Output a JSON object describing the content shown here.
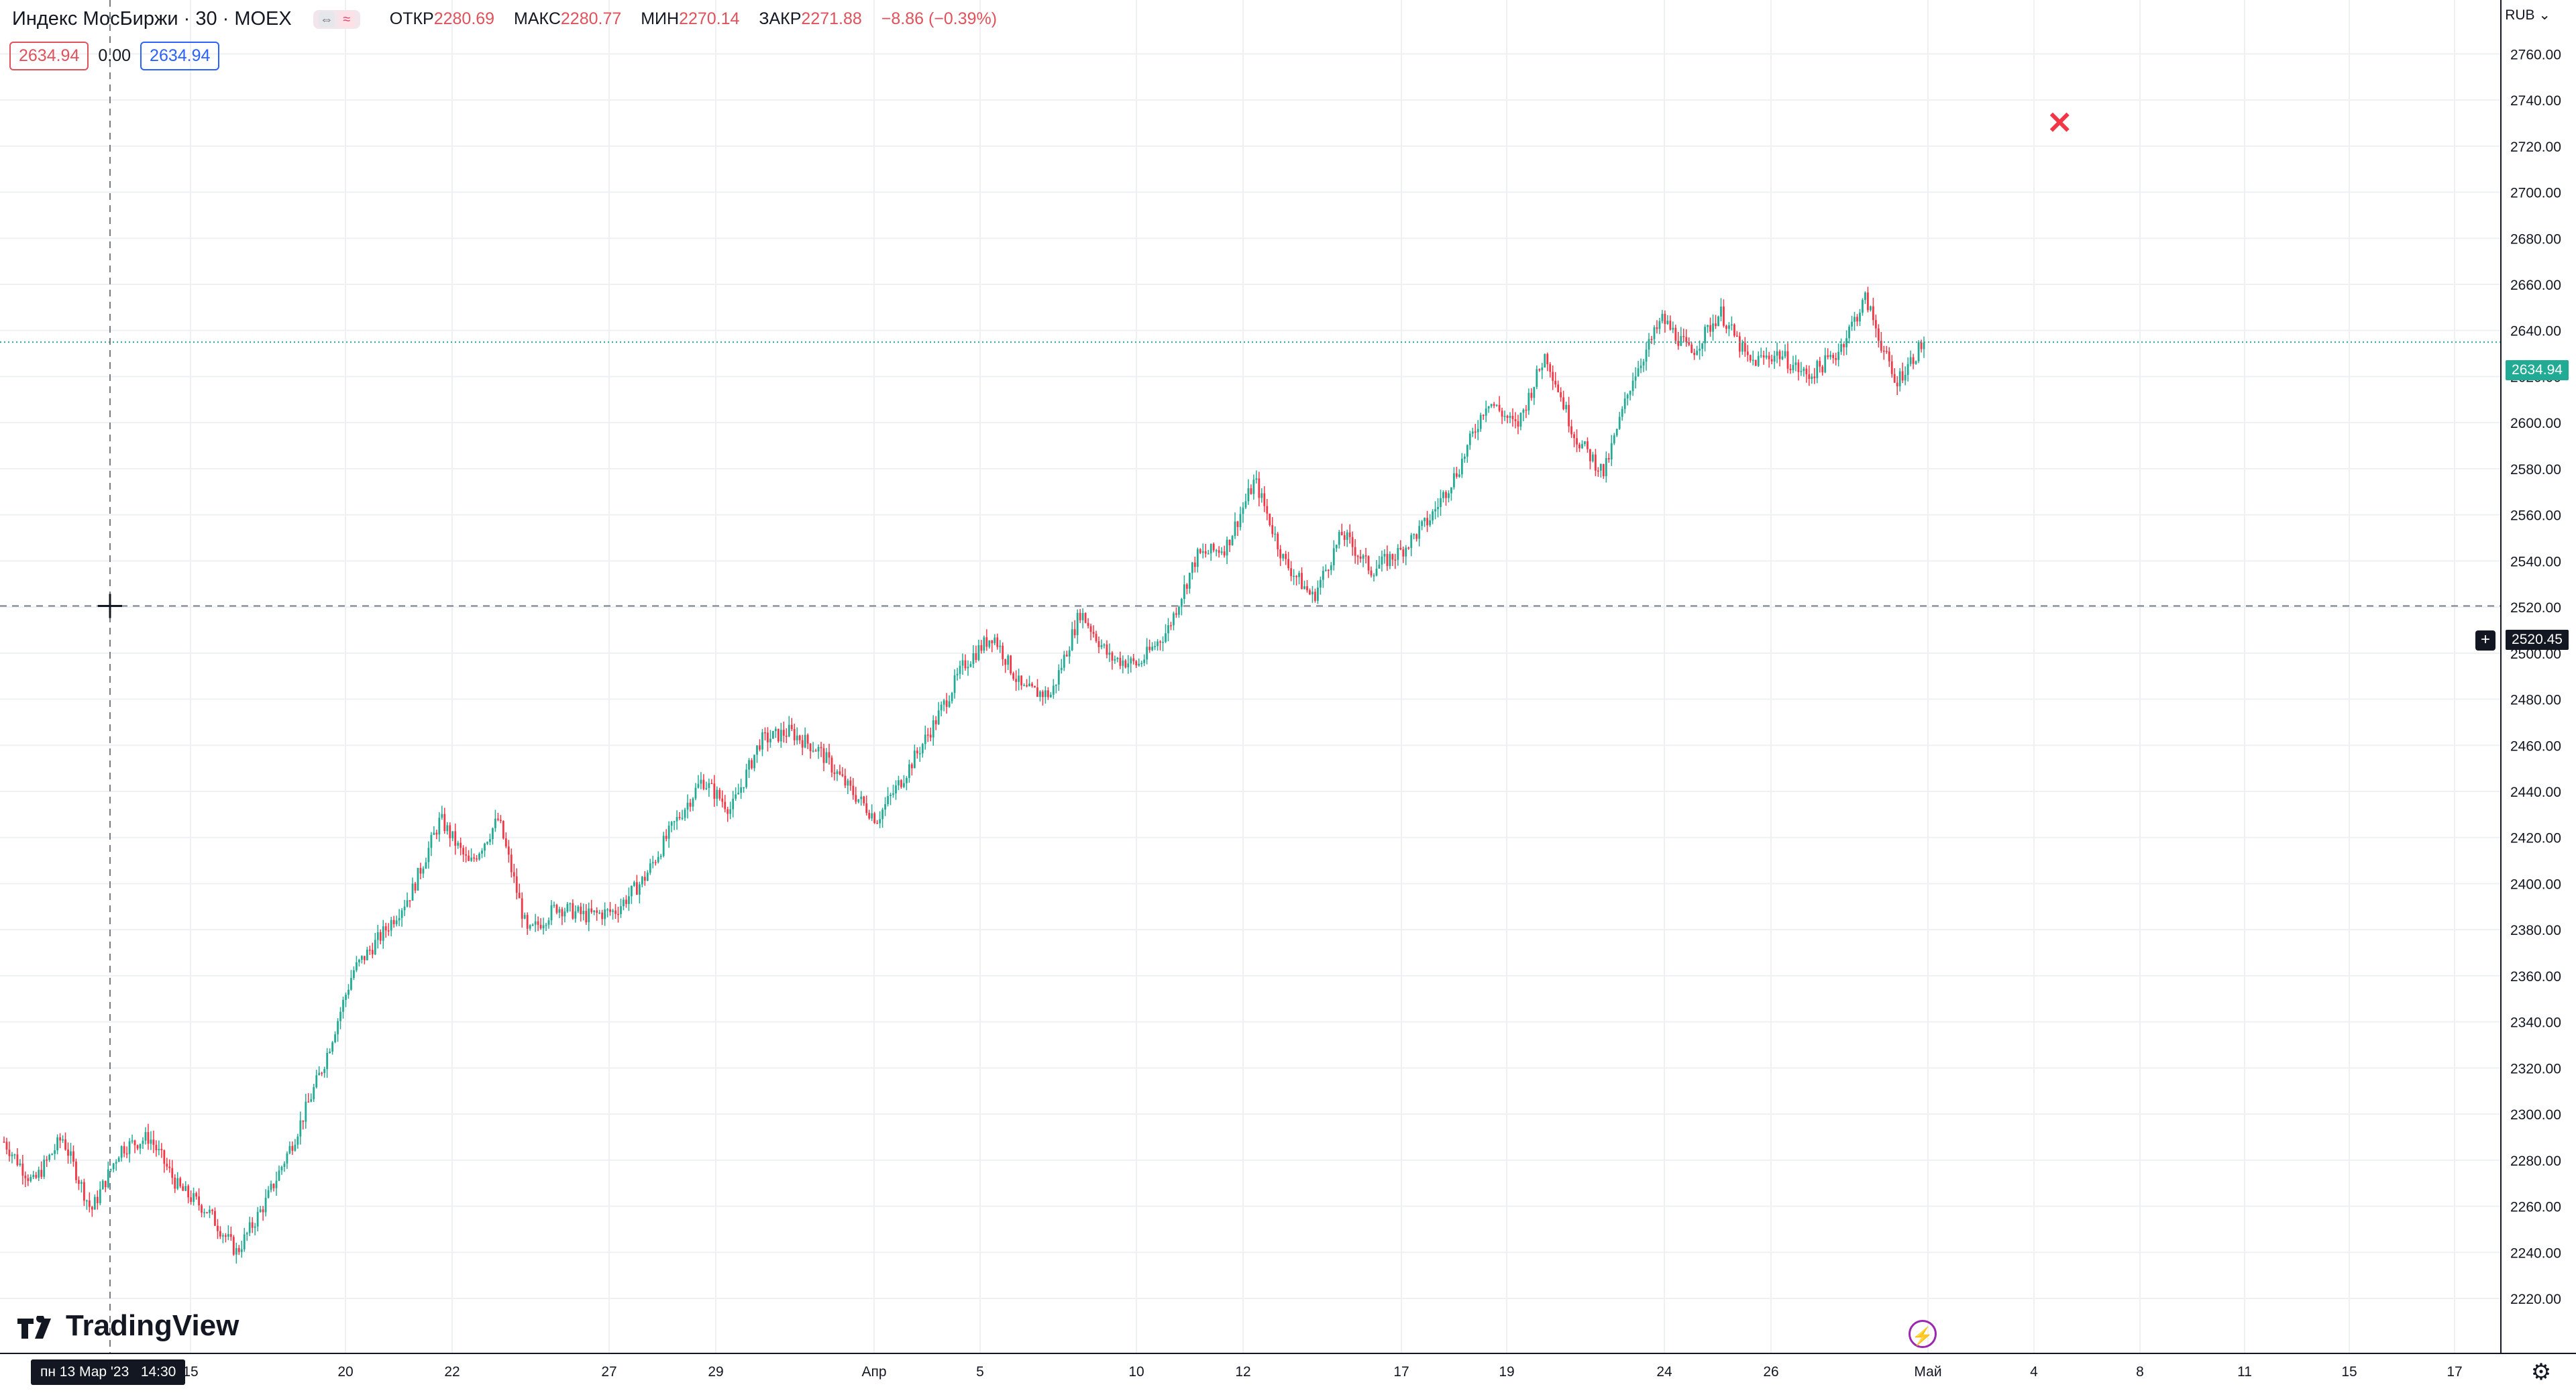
{
  "legend": {
    "symbol": "Индекс МосБиржи · 30 · MOEX",
    "open_label": "ОТКР",
    "open": "2280.69",
    "high_label": "МАКС",
    "high": "2280.77",
    "low_label": "МИН",
    "low": "2270.14",
    "close_label": "ЗАКР",
    "close": "2271.88",
    "change": "−8.86 (−0.39%)",
    "toggle_icon": "≈"
  },
  "order": {
    "sell": "2634.94",
    "spread": "0.00",
    "buy": "2634.94"
  },
  "currency": "RUB ⌄",
  "brand": "TradingView",
  "crosshair": {
    "date": "пн 13 Мар '23",
    "time": "14:30",
    "price": "2520.45"
  },
  "last_price": "2634.94",
  "colors": {
    "up": "#22ab94",
    "down": "#f23645",
    "grid": "#eef0f3"
  },
  "chart_data": {
    "type": "candlestick",
    "ylim": [
      2220,
      2770
    ],
    "y_ticks": [
      "2220.00",
      "2240.00",
      "2260.00",
      "2280.00",
      "2300.00",
      "2320.00",
      "2340.00",
      "2360.00",
      "2380.00",
      "2400.00",
      "2420.00",
      "2440.00",
      "2460.00",
      "2480.00",
      "2500.00",
      "2520.00",
      "2540.00",
      "2560.00",
      "2580.00",
      "2600.00",
      "2620.00",
      "2640.00",
      "2660.00",
      "2680.00",
      "2700.00",
      "2720.00",
      "2740.00",
      "2760.00"
    ],
    "x_ticks": [
      "15",
      "20",
      "22",
      "27",
      "29",
      "Апр",
      "5",
      "10",
      "12",
      "17",
      "19",
      "24",
      "26",
      "Май",
      "4",
      "8",
      "11",
      "15",
      "17"
    ],
    "path": [
      [
        "Mar 10",
        2288
      ],
      [
        "Mar 13",
        2270
      ],
      [
        "Mar 14",
        2290
      ],
      [
        "Mar 15",
        2258
      ],
      [
        "Mar 16",
        2285
      ],
      [
        "Mar 17",
        2290
      ],
      [
        "Mar 17",
        2268
      ],
      [
        "Mar 17",
        2258
      ],
      [
        "Mar 20",
        2240
      ],
      [
        "Mar 20",
        2262
      ],
      [
        "Mar 20",
        2290
      ],
      [
        "Mar 20",
        2322
      ],
      [
        "Mar 21",
        2362
      ],
      [
        "Mar 21",
        2378
      ],
      [
        "Mar 21",
        2396
      ],
      [
        "Mar 21",
        2428
      ],
      [
        "Mar 22",
        2408
      ],
      [
        "Mar 22",
        2428
      ],
      [
        "Mar 22",
        2378
      ],
      [
        "Mar 23",
        2390
      ],
      [
        "Mar 24",
        2386
      ],
      [
        "Mar 27",
        2388
      ],
      [
        "Mar 27",
        2402
      ],
      [
        "Mar 27",
        2425
      ],
      [
        "Mar 28",
        2445
      ],
      [
        "Mar 29",
        2432
      ],
      [
        "Mar 29",
        2462
      ],
      [
        "Mar 30",
        2466
      ],
      [
        "Mar 30",
        2458
      ],
      [
        "Mar 31",
        2442
      ],
      [
        "Mar 31",
        2428
      ],
      [
        "Mar 31",
        2448
      ],
      [
        "Apr 3",
        2470
      ],
      [
        "Apr 4",
        2495
      ],
      [
        "Apr 4",
        2508
      ],
      [
        "Apr 5",
        2484
      ],
      [
        "Apr 6",
        2482
      ],
      [
        "Apr 6",
        2518
      ],
      [
        "Apr 7",
        2498
      ],
      [
        "Apr 7",
        2495
      ],
      [
        "Apr 10",
        2510
      ],
      [
        "Apr 10",
        2542
      ],
      [
        "Apr 10",
        2546
      ],
      [
        "Apr 11",
        2575
      ],
      [
        "Apr 11",
        2540
      ],
      [
        "Apr 12",
        2524
      ],
      [
        "Apr 12",
        2552
      ],
      [
        "Apr 13",
        2536
      ],
      [
        "Apr 14",
        2544
      ],
      [
        "Apr 17",
        2558
      ],
      [
        "Apr 17",
        2580
      ],
      [
        "Apr 18",
        2610
      ],
      [
        "Apr 18",
        2598
      ],
      [
        "Apr 19",
        2630
      ],
      [
        "Apr 20",
        2594
      ],
      [
        "Apr 20",
        2578
      ],
      [
        "Apr 21",
        2620
      ],
      [
        "Apr 21",
        2645
      ],
      [
        "Apr 24",
        2630
      ],
      [
        "Apr 24",
        2648
      ],
      [
        "Apr 25",
        2626
      ],
      [
        "Apr 26",
        2630
      ],
      [
        "Apr 26",
        2620
      ],
      [
        "Apr 27",
        2630
      ],
      [
        "Apr 28",
        2654
      ],
      [
        "Apr 28",
        2617
      ],
      [
        "Apr 28",
        2635
      ]
    ]
  }
}
